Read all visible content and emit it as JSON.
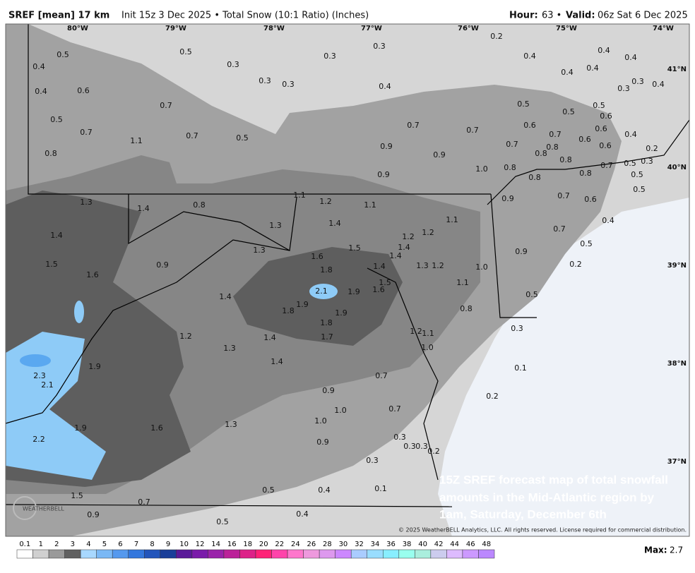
{
  "header": {
    "title": "SREF [mean] 17 km",
    "subtitle": "Init 15z 3 Dec 2025 • Total Snow (10:1 Ratio) (Inches)",
    "hour_label": "Hour:",
    "hour": "63 •",
    "valid_label": "Valid:",
    "valid": "06z Sat 6 Dec 2025"
  },
  "longitudes": [
    "80°W",
    "79°W",
    "78°W",
    "77°W",
    "76°W",
    "75°W",
    "74°W"
  ],
  "latitudes": [
    "41°N",
    "40°N",
    "39°N",
    "38°N",
    "37°N"
  ],
  "spots": [
    "0.5",
    "0.4",
    "0.5",
    "0.3",
    "0.3",
    "0.3",
    "0.2",
    "0.4",
    "0.4",
    "0.4",
    "0.4",
    "0.6",
    "0.3",
    "0.3",
    "0.4",
    "0.4",
    "0.4",
    "0.3",
    "0.3",
    "0.4",
    "0.7",
    "0.5",
    "0.7",
    "0.5",
    "0.5",
    "0.5",
    "0.6",
    "0.7",
    "0.7",
    "0.6",
    "0.7",
    "0.6",
    "0.4",
    "1.1",
    "0.7",
    "0.5",
    "0.8",
    "0.9",
    "0.9",
    "0.7",
    "0.8",
    "0.8",
    "0.6",
    "0.6",
    "0.2",
    "0.3",
    "0.8",
    "0.7",
    "0.5",
    "0.9",
    "1.0",
    "0.8",
    "0.8",
    "0.8",
    "0.5",
    "0.5",
    "1.1",
    "1.3",
    "1.4",
    "0.8",
    "1.2",
    "1.1",
    "0.9",
    "0.7",
    "0.6",
    "1.3",
    "1.4",
    "1.1",
    "1.4",
    "1.2",
    "1.2",
    "0.7",
    "0.4",
    "1.3",
    "1.5",
    "1.4",
    "1.4",
    "0.9",
    "0.5",
    "1.5",
    "0.9",
    "1.6",
    "1.4",
    "1.3",
    "1.2",
    "1.0",
    "0.2",
    "1.6",
    "1.8",
    "2.1",
    "1.9",
    "1.5",
    "1.6",
    "1.1",
    "0.5",
    "1.4",
    "1.9",
    "1.8",
    "1.9",
    "0.8",
    "1.8",
    "1.7",
    "1.2",
    "1.4",
    "1.2",
    "1.1",
    "0.3",
    "1.0",
    "1.3",
    "1.4",
    "1.9",
    "0.1",
    "2.3",
    "2.1",
    "0.7",
    "0.9",
    "0.2",
    "1.0",
    "0.7",
    "1.9",
    "1.6",
    "1.3",
    "1.0",
    "0.3",
    "2.2",
    "0.9",
    "0.3",
    "0.3",
    "0.2",
    "0.3",
    "0.5",
    "0.4",
    "0.1",
    "1.5",
    "0.7",
    "0.9",
    "0.4",
    "0.5"
  ],
  "caption": [
    "15Z SREF forecast map of total snowfall",
    "amounts in the Mid-Atlantic region by",
    "1am, Saturday, December 6th"
  ],
  "copyright": "© 2025 WeatherBELL Analytics, LLC. All rights reserved. License required for commercial distribution.",
  "logo": "WEATHERBELL",
  "colorbar": {
    "labels": [
      0.1,
      1,
      2,
      3,
      4,
      5,
      6,
      7,
      8,
      9,
      10,
      12,
      14,
      16,
      18,
      20,
      22,
      24,
      26,
      28,
      30,
      32,
      34,
      36,
      38,
      40,
      42,
      44,
      46,
      48
    ],
    "colors": [
      "#ffffff",
      "#d0d0d0",
      "#9a9a9a",
      "#606060",
      "#a8d8ff",
      "#7ab8f5",
      "#5599ee",
      "#3377dd",
      "#2255bb",
      "#1a3f99",
      "#5a1a99",
      "#7a1aaa",
      "#9a22aa",
      "#bb2299",
      "#dd2288",
      "#ff2277",
      "#ff44aa",
      "#ff77cc",
      "#ee99dd",
      "#dd99ee",
      "#cc88ff",
      "#aaccff",
      "#99ddff",
      "#88eeff",
      "#99ffee",
      "#aaeedd",
      "#ccccee",
      "#ddbbff",
      "#cc99ff",
      "#bb88ff"
    ]
  },
  "max_label": "Max:",
  "max": "2.7"
}
